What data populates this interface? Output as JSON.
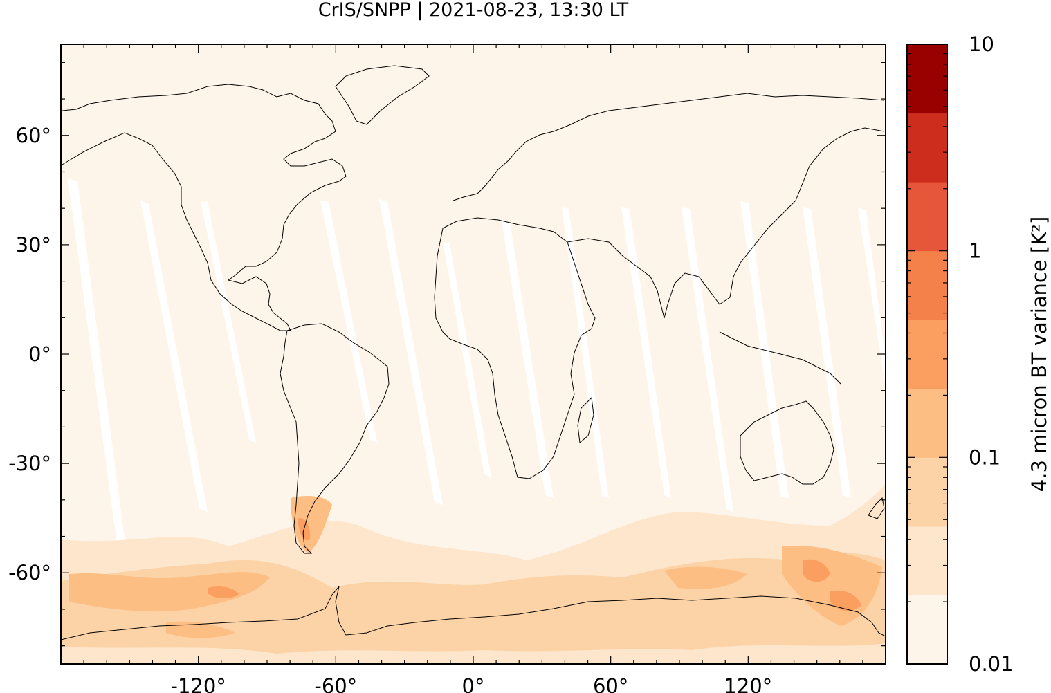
{
  "title": "CrIS/SNPP | 2021-08-23, 13:30 LT",
  "map": {
    "projection": "equirectangular",
    "lon_range": [
      -180,
      180
    ],
    "lat_range": [
      -85,
      85
    ],
    "x_ticks": [
      {
        "value": -120,
        "label": "-120°"
      },
      {
        "value": -60,
        "label": "-60°"
      },
      {
        "value": 0,
        "label": "0°"
      },
      {
        "value": 60,
        "label": "60°"
      },
      {
        "value": 120,
        "label": "120°"
      }
    ],
    "y_ticks": [
      {
        "value": 60,
        "label": "60°"
      },
      {
        "value": 30,
        "label": "30°"
      },
      {
        "value": 0,
        "label": "0°"
      },
      {
        "value": -30,
        "label": "-30°"
      },
      {
        "value": -60,
        "label": "-60°"
      }
    ],
    "coastlines": "black outline"
  },
  "colorbar": {
    "label": "4.3 micron BT variance [K²]",
    "scale": "log",
    "range": [
      0.01,
      10
    ],
    "tick_labels": [
      {
        "value": 10,
        "label": "10"
      },
      {
        "value": 1,
        "label": "1"
      },
      {
        "value": 0.1,
        "label": "0.1"
      },
      {
        "value": 0.01,
        "label": "0.01"
      }
    ],
    "colors": [
      "#fef5ea",
      "#fde6cc",
      "#fcd3a6",
      "#fdbe84",
      "#fb9f61",
      "#f5814a",
      "#e6573a",
      "#cc2d1d",
      "#990000"
    ]
  }
}
